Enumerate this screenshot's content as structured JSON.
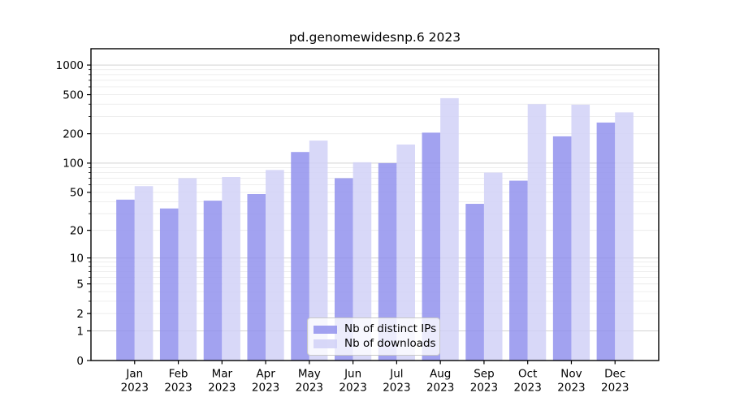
{
  "chart_data": {
    "type": "bar",
    "title": "pd.genomewidesnp.6 2023",
    "categories": [
      "Jan",
      "Feb",
      "Mar",
      "Apr",
      "May",
      "Jun",
      "Jul",
      "Aug",
      "Sep",
      "Oct",
      "Nov",
      "Dec"
    ],
    "xtick_year": "2023",
    "series": [
      {
        "name": "Nb of distinct IPs",
        "color": "#8d8ded",
        "values": [
          42,
          34,
          41,
          48,
          130,
          70,
          100,
          205,
          38,
          66,
          188,
          260
        ]
      },
      {
        "name": "Nb of downloads",
        "color": "#d0d0f6",
        "values": [
          58,
          70,
          72,
          85,
          170,
          102,
          155,
          460,
          80,
          400,
          395,
          330
        ]
      }
    ],
    "bar_opacity": 0.82,
    "yscale": "log1p",
    "ylim": [
      0,
      1465
    ],
    "yticks": [
      0,
      1,
      2,
      5,
      10,
      20,
      50,
      100,
      200,
      500,
      1000
    ],
    "grid": {
      "orientation": "horizontal",
      "major_color": "#d2d2d2",
      "minor_color": "#ececec"
    },
    "legend": {
      "position": "lower center"
    }
  }
}
